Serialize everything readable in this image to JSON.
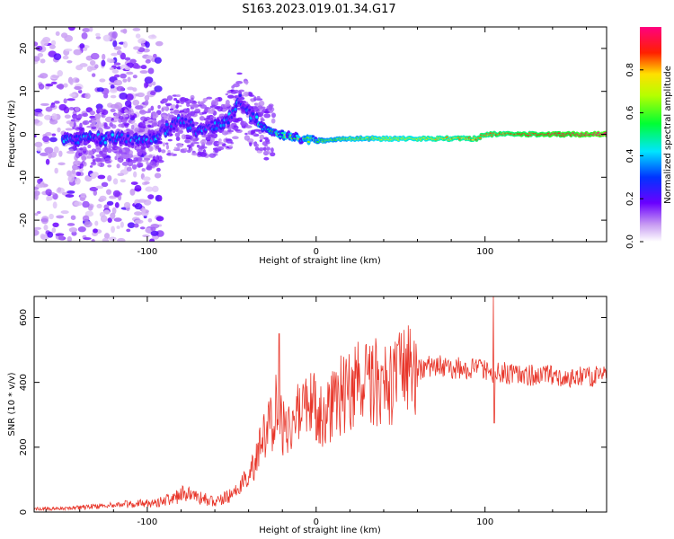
{
  "title": "S163.2023.019.01.34.G17",
  "chart_data": [
    {
      "type": "heatmap",
      "xlabel": "Height of straight line (km)",
      "ylabel": "Frequency (Hz)",
      "xlim": [
        -167,
        172
      ],
      "ylim": [
        -25,
        25
      ],
      "xticks": [
        -100,
        0,
        100
      ],
      "yticks": [
        -20,
        -10,
        0,
        10,
        20
      ],
      "colorbar": {
        "label": "Normalized spectral amplitude",
        "range": [
          0,
          1
        ],
        "ticks": [
          "0.0",
          "0.2",
          "0.4",
          "0.6",
          "0.8"
        ]
      },
      "ridge": {
        "x": [
          -140,
          -120,
          -100,
          -90,
          -80,
          -70,
          -60,
          -50,
          -45,
          -40,
          -35,
          -30,
          -20,
          -10,
          0,
          20,
          50,
          95,
          100,
          130,
          172
        ],
        "y": [
          -1,
          -1,
          -1.5,
          1,
          3,
          1,
          2,
          4,
          8,
          5,
          3,
          1,
          0,
          -1,
          -1.5,
          -1,
          -1,
          -1,
          0,
          0,
          0
        ]
      }
    },
    {
      "type": "line",
      "xlabel": "Height of straight line (km)",
      "ylabel": "SNR (10 * v/v)",
      "xlim": [
        -167,
        172
      ],
      "ylim": [
        0,
        665
      ],
      "xticks": [
        -100,
        0,
        100
      ],
      "yticks": [
        0,
        200,
        400,
        600
      ],
      "color": "#e8362a",
      "series": [
        {
          "x": [
            -167,
            -150,
            -130,
            -110,
            -95,
            -85,
            -80,
            -75,
            -70,
            -60,
            -50,
            -40,
            -35,
            -30,
            -25,
            -22,
            -20,
            -15,
            -10,
            -5,
            0,
            5,
            10,
            20,
            30,
            40,
            50,
            60,
            70,
            80,
            90,
            100,
            105,
            110,
            120,
            130,
            140,
            150,
            160,
            172
          ],
          "values": [
            10,
            10,
            18,
            25,
            30,
            40,
            55,
            60,
            48,
            30,
            50,
            110,
            170,
            240,
            300,
            360,
            250,
            280,
            300,
            320,
            330,
            280,
            340,
            385,
            395,
            405,
            415,
            440,
            450,
            445,
            440,
            445,
            430,
            430,
            425,
            420,
            420,
            418,
            418,
            418
          ]
        }
      ],
      "spikes": [
        {
          "x": -22,
          "value": 550
        },
        {
          "x": 105,
          "value": 665
        },
        {
          "x": 105.5,
          "value": 275
        }
      ]
    }
  ]
}
